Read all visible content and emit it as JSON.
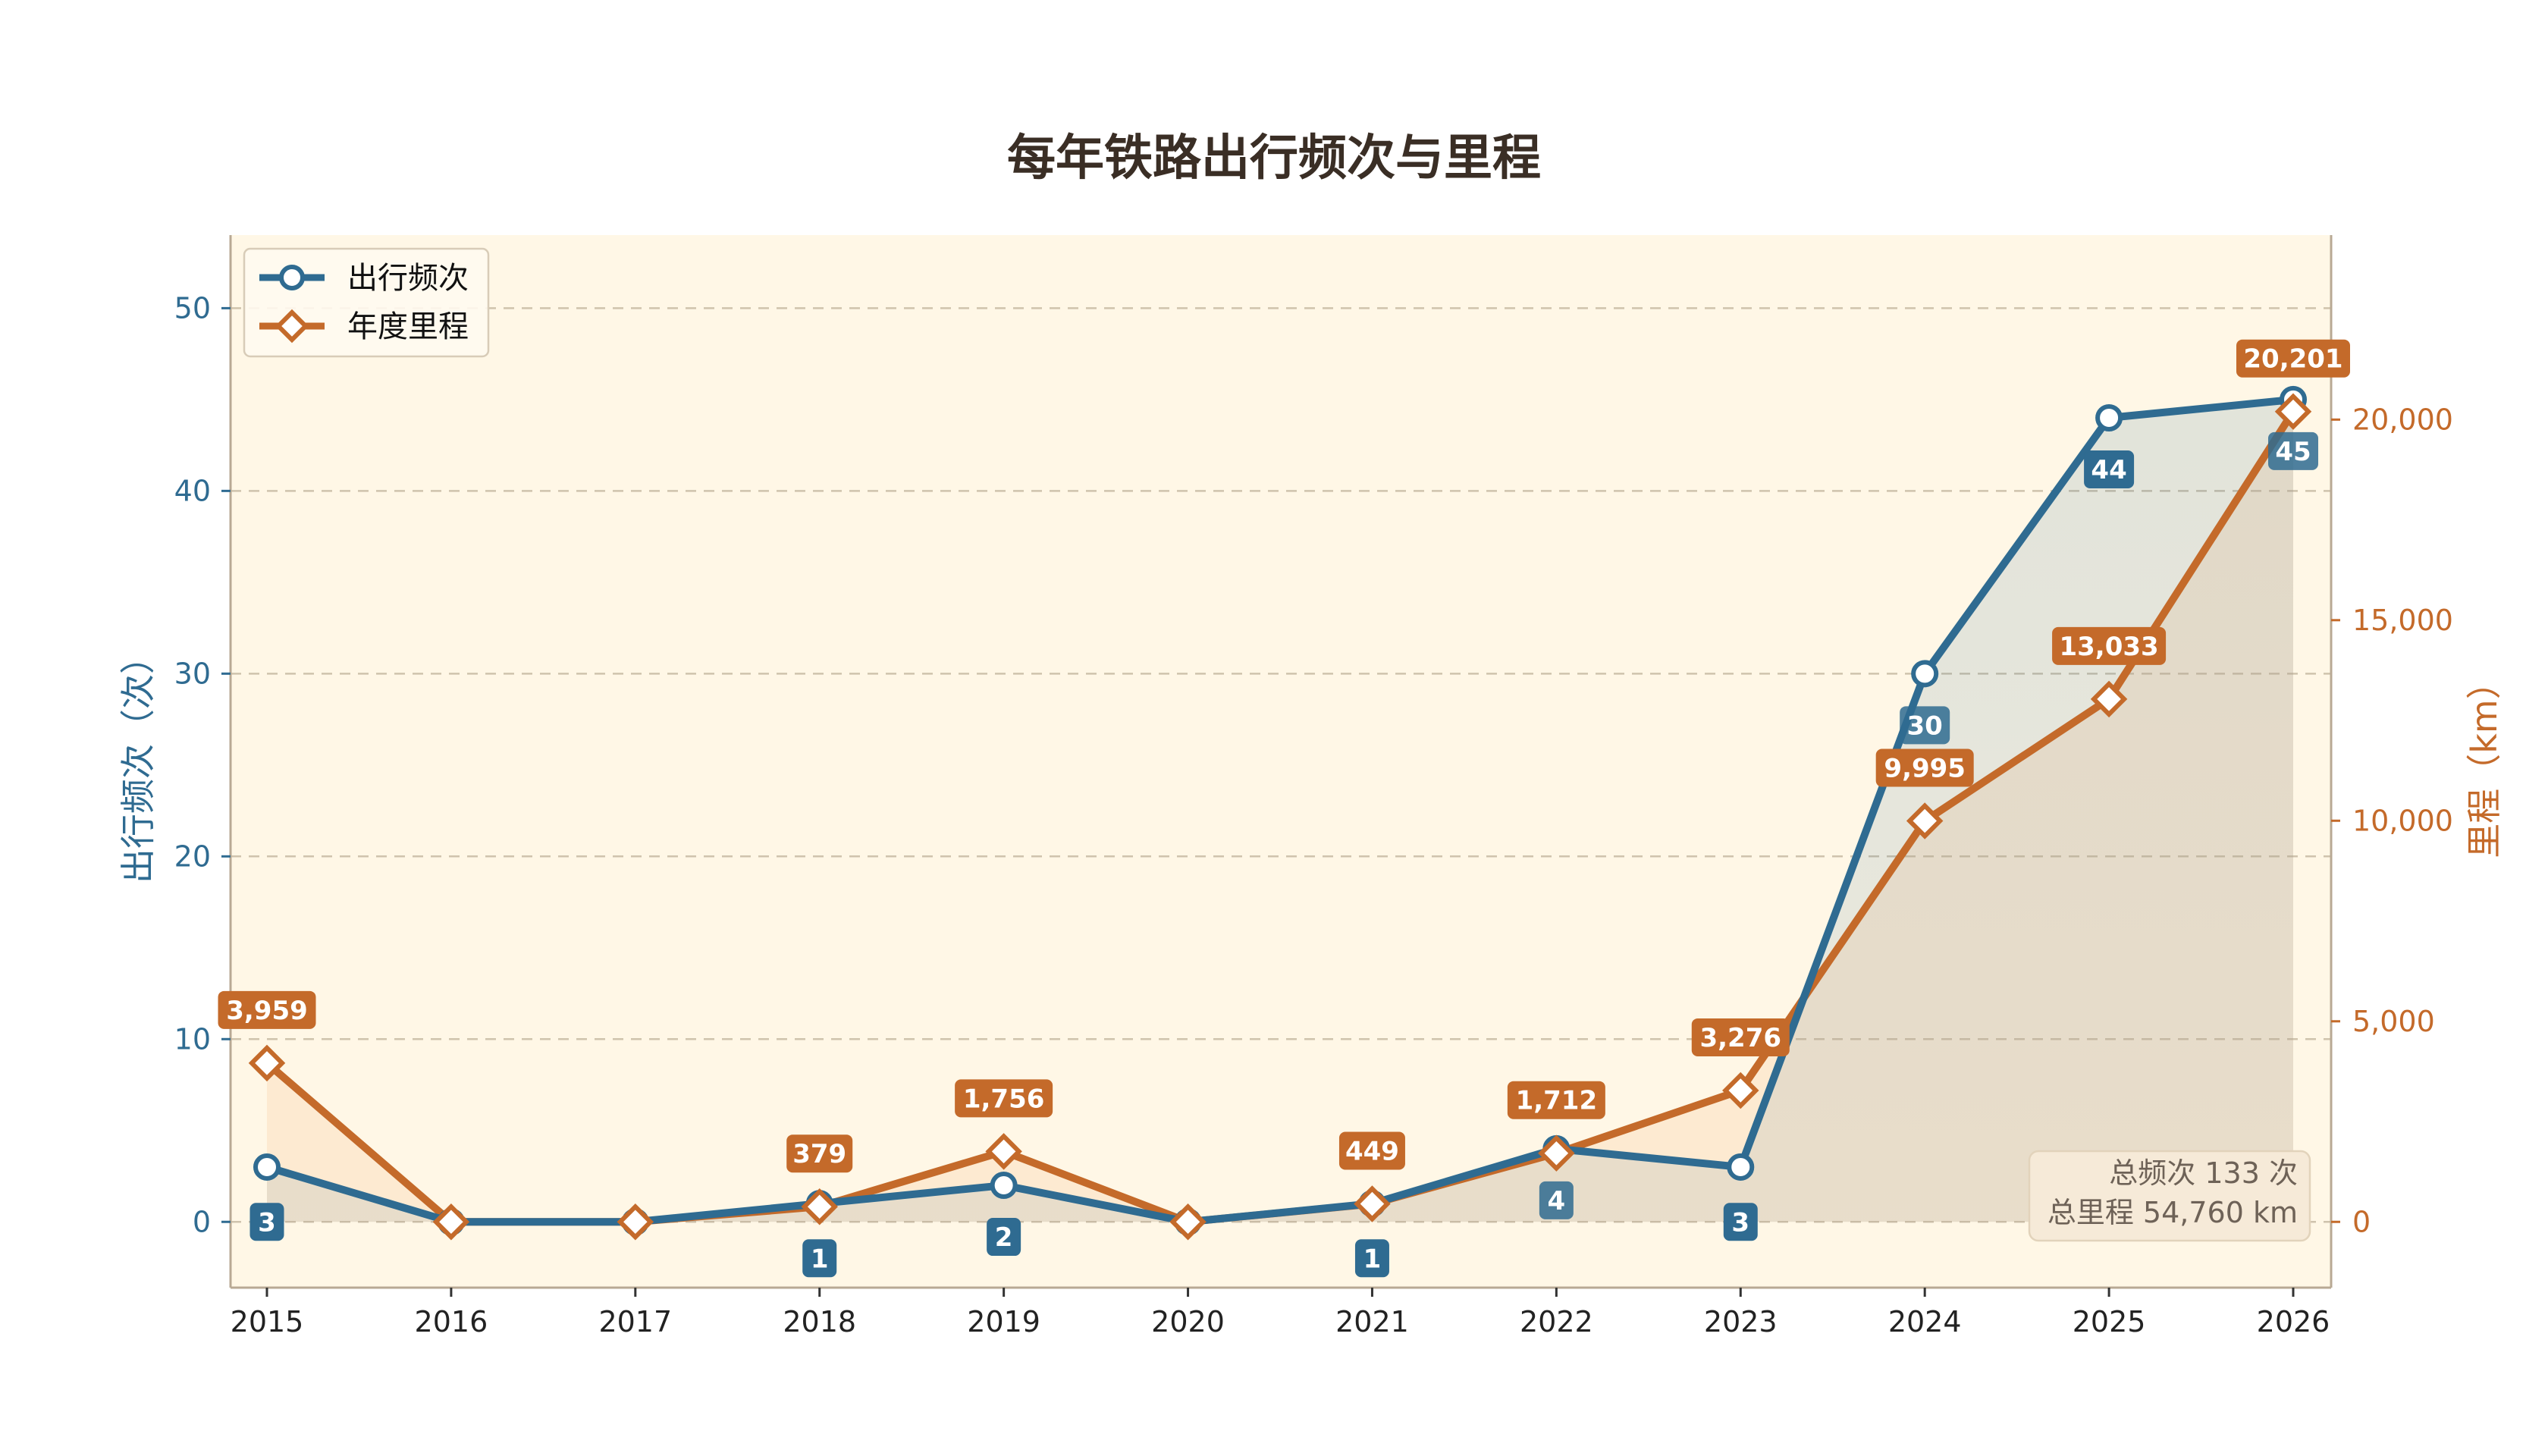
{
  "chart_data": {
    "type": "line",
    "title": "每年铁路出行频次与里程",
    "categories": [
      "2015",
      "2016",
      "2017",
      "2018",
      "2019",
      "2020",
      "2021",
      "2022",
      "2023",
      "2024",
      "2025",
      "2026"
    ],
    "y_left": {
      "label": "出行频次（次）",
      "range": [
        -3.6,
        54
      ],
      "ticks": [
        0,
        10,
        20,
        30,
        40,
        50
      ]
    },
    "y_right": {
      "label": "里程（km）",
      "range": [
        -1640,
        24600
      ],
      "ticks": [
        "0",
        "5,000",
        "10,000",
        "15,000",
        "20,000"
      ],
      "tick_values": [
        0,
        5000,
        10000,
        15000,
        20000
      ]
    },
    "series": [
      {
        "name": "出行频次",
        "axis": "left",
        "color": "#2f6b91",
        "marker": "circle",
        "values": [
          3,
          0,
          0,
          1,
          2,
          0,
          1,
          4,
          3,
          30,
          44,
          45
        ],
        "labels": [
          "3",
          "",
          "",
          "1",
          "2",
          "",
          "1",
          "4",
          "3",
          "30",
          "44",
          "45"
        ]
      },
      {
        "name": "年度里程",
        "axis": "right",
        "color": "#c46a2a",
        "marker": "diamond",
        "values": [
          3959,
          0,
          0,
          379,
          1756,
          0,
          449,
          1712,
          3276,
          9995,
          13033,
          20201
        ],
        "labels": [
          "3,959",
          "",
          "",
          "379",
          "1,756",
          "",
          "449",
          "1,712",
          "3,276",
          "9,995",
          "13,033",
          "20,201"
        ]
      }
    ],
    "grid": "horizontal-dashed",
    "legend_position": "top-left",
    "summary": {
      "line1": "总频次 133 次",
      "line2": "总里程 54,760 km"
    }
  },
  "colors": {
    "plot_bg": "#fff7e6",
    "freq": "#2f6b91",
    "dist": "#c46a2a"
  }
}
